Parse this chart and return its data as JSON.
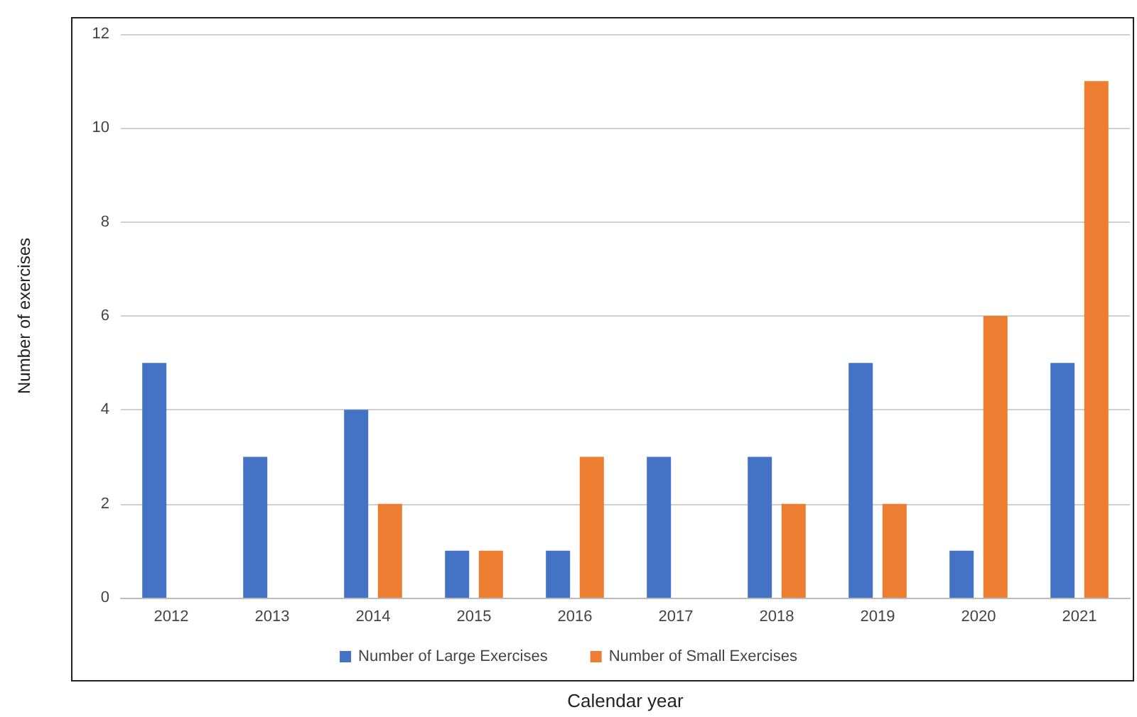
{
  "chart_data": {
    "type": "bar",
    "xlabel": "Calendar year",
    "ylabel": "Number of exercises",
    "categories": [
      "2012",
      "2013",
      "2014",
      "2015",
      "2016",
      "2017",
      "2018",
      "2019",
      "2020",
      "2021"
    ],
    "series": [
      {
        "name": "Number of Large Exercises",
        "color": "#4472c4",
        "values": [
          5,
          3,
          4,
          1,
          1,
          3,
          3,
          5,
          1,
          5
        ]
      },
      {
        "name": "Number of Small Exercises",
        "color": "#ed7d31",
        "values": [
          0,
          0,
          2,
          1,
          3,
          0,
          2,
          2,
          6,
          11
        ]
      }
    ],
    "ylim": [
      0,
      12
    ],
    "yticks": [
      0,
      2,
      4,
      6,
      8,
      10,
      12
    ],
    "grid": "y",
    "legend": "bottom"
  }
}
